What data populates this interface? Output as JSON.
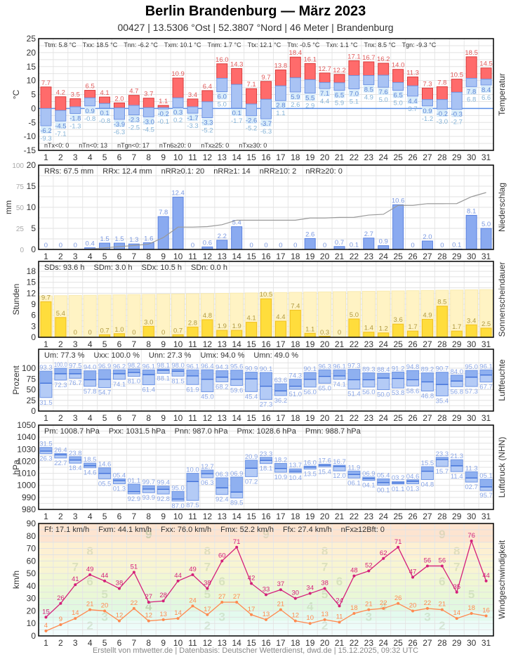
{
  "header": {
    "title": "Berlin Brandenburg  —  März 2023",
    "subtitle": "00427  |  13.5306 °Ost  |  52.3807 °Nord  |  46 Meter  |  Brandenburg"
  },
  "footer": "Erstellt von mtwetter.de | Datenbasis: Deutscher Wetterdienst, dwd.de | 15.12.2025, 09:32 UTC",
  "colors": {
    "temp_max": "#ff6b6b",
    "temp_min": "#a9c3f4",
    "zero_line": "#5b8fe8",
    "precip": "#8aaaf0",
    "precip_cumulative": "#999999",
    "sun": "#ffdd3c",
    "daylength": "#fff3c4",
    "humidity": "#a9c3f4",
    "pressure": "#a9c3f4",
    "wind_gust": "#d4207a",
    "wind_mean": "#ff8a50"
  },
  "chart_data": [
    {
      "type": "bar",
      "panel": "Temperatur",
      "ylabel": "°C",
      "ylim": [
        -15,
        25
      ],
      "yticks": [
        -15,
        -10,
        -5,
        0,
        5,
        10,
        15,
        20,
        25
      ],
      "categories": [
        1,
        2,
        3,
        4,
        5,
        6,
        7,
        8,
        9,
        10,
        11,
        12,
        13,
        14,
        15,
        16,
        17,
        18,
        19,
        20,
        21,
        22,
        23,
        24,
        25,
        26,
        27,
        28,
        29,
        30,
        31
      ],
      "stats_top": [
        "Ttm: 5.8 °C",
        "Txx: 18.5 °C",
        "Tnn: -6.2 °C",
        "Txm: 10.1 °C",
        "Tnm: 1.7 °C",
        "Ttx: 12.1 °C",
        "Ttn: -0.5 °C",
        "Txn: 1.1 °C",
        "Tnx: 8.5 °C",
        "Tgn: -9.3 °C"
      ],
      "stats_bottom": [
        "nTx<0: 0",
        "nTn<0: 13",
        "nTgn<0: 17",
        "nTn6≥20: 0",
        "nTx≥25: 0",
        "nTx≥30: 0"
      ],
      "tmax": [
        7.7,
        4.2,
        3.5,
        6.5,
        4.1,
        2.0,
        4.7,
        3.7,
        1.1,
        10.9,
        3.4,
        6.4,
        16.0,
        14.3,
        7.1,
        9.7,
        13.8,
        18.4,
        16.1,
        12.7,
        12.2,
        17.1,
        16.7,
        16.2,
        14.0,
        11.3,
        7.3,
        7.8,
        10.5,
        18.5,
        14.5
      ],
      "tmean": [
        0.0,
        -0.7,
        0.6,
        3.8,
        1.8,
        0.2,
        1.1,
        0.3,
        0.3,
        3.8,
        0.6,
        2.4,
        10.8,
        8.6,
        1.6,
        3.3,
        8.1,
        11.0,
        10.3,
        9.3,
        9.2,
        11.8,
        11.8,
        11.9,
        9.3,
        8.1,
        3.2,
        3.2,
        5.8,
        10.8,
        10.5
      ],
      "tmin": [
        -6.2,
        -4.5,
        -1.8,
        0.9,
        0.1,
        -3.9,
        -2.3,
        -3.0,
        -0.2,
        0.3,
        -1.7,
        -3.3,
        6.0,
        0.1,
        -2.6,
        -3.7,
        2.8,
        5.9,
        5.5,
        7.1,
        6.5,
        7.0,
        8.5,
        7.6,
        6.5,
        4.4,
        0.9,
        -0.2,
        -0.3,
        7.8,
        8.4
      ],
      "tground_min": [
        -9.3,
        -7.1,
        -1.3,
        -0.8,
        -0.8,
        -6.3,
        -2.5,
        -4.5,
        -0.1,
        0.2,
        -3.3,
        -5.2,
        5.0,
        -1.7,
        -5.2,
        -6.3,
        1.1,
        2.6,
        2.9,
        4.4,
        5.9,
        5.1,
        4.9,
        5.0,
        5.0,
        3.7,
        -1.2,
        -3.0,
        -2.7,
        6.8,
        6.6
      ]
    },
    {
      "type": "bar",
      "panel": "Niederschlag",
      "ylabel": "mm",
      "ylim": [
        0,
        20
      ],
      "yticks": [
        0,
        5,
        10,
        15,
        20
      ],
      "y2lim": [
        0,
        100
      ],
      "y2ticks": [
        0,
        25,
        50,
        75,
        100
      ],
      "stats_top": [
        "RRs: 67.5 mm",
        "RRx: 12.4 mm",
        "nRR≥0.1: 20",
        "nRR≥1: 14",
        "nRR≥10: 2",
        "nRR≥20: 0"
      ],
      "values": [
        0,
        0,
        0,
        0.4,
        1.5,
        1.5,
        1.3,
        1.6,
        7.8,
        12.4,
        0,
        0.6,
        2.2,
        5.4,
        0,
        0,
        0,
        0,
        2.6,
        0,
        0.7,
        0.1,
        2.7,
        0.9,
        10.6,
        0,
        2.0,
        0,
        0.1,
        8.1,
        5.0
      ],
      "labels": [
        "0",
        "0",
        "0",
        "0.4",
        "1.5",
        "1.5",
        "1.3",
        "1.6",
        "7.8",
        "12.4",
        "0",
        "0.6",
        "2.2",
        "5.4",
        "0",
        "0",
        "0",
        "0",
        "2.6",
        "0",
        "0.7",
        "0.1",
        "2.7",
        "0.9",
        "10.6",
        "0",
        "2.0",
        "0",
        "0.1",
        "8.1",
        "5.0"
      ]
    },
    {
      "type": "bar",
      "panel": "Sonnenscheindauer",
      "ylabel": "Stunden",
      "ylim": [
        0,
        20.7
      ],
      "yticks": [
        0,
        3,
        6,
        9,
        12,
        15,
        18
      ],
      "stats_top": [
        "SDs: 93.6 h",
        "SDm: 3.0 h",
        "SDx: 10.5 h",
        "SDn: 0.0 h"
      ],
      "values": [
        9.7,
        5.4,
        0,
        0,
        0.7,
        1.0,
        0,
        3.0,
        0,
        0.7,
        2.8,
        4.8,
        1.9,
        1.9,
        4.1,
        10.5,
        4.4,
        7.4,
        1.1,
        0.3,
        0,
        5.0,
        1.4,
        1.2,
        3.6,
        1.7,
        4.9,
        8.5,
        1.7,
        3.4,
        2.5
      ],
      "labels": [
        "9.7",
        "5.4",
        "0",
        "0",
        "0.7",
        "1.0",
        "0",
        "3.0",
        "0",
        "0.7",
        "2.8",
        "4.8",
        "1.9",
        "1.9",
        "4.1",
        "10.5",
        "4.4",
        "7.4",
        "1.1",
        "0.3",
        "0",
        "5.0",
        "1.4",
        "1.2",
        "3.6",
        "1.7",
        "4.9",
        "8.5",
        "1.7",
        "3.4",
        "2.5"
      ],
      "daylength_range": [
        11.3,
        13.0
      ]
    },
    {
      "type": "bar",
      "panel": "Luftfeuchte",
      "ylabel": "Prozent",
      "ylim": [
        0,
        123
      ],
      "yticks": [
        0,
        25,
        50,
        75,
        100
      ],
      "stats_top": [
        "Um: 77.3 %",
        "Uxx: 100.0 %",
        "Unn: 27.3 %",
        "Umx: 94.0 %",
        "Umn: 49.0 %"
      ],
      "max": [
        93.3,
        100.0,
        97.5,
        94.0,
        96.9,
        96.2,
        98.2,
        96.1,
        98.1,
        98.0,
        96.1,
        96.4,
        94.3,
        95.6,
        90.9,
        90.1,
        63.6,
        74.3,
        90.1,
        96.3,
        96.1,
        97.3,
        89.3,
        88.4,
        91.2,
        94.8,
        89.2,
        90.7,
        84.0,
        95.0,
        96.1
      ],
      "mean": [
        65,
        87,
        87,
        73,
        74,
        87,
        90,
        85,
        95,
        93,
        82,
        74,
        79,
        74,
        75,
        58,
        47,
        58,
        74,
        81,
        82,
        73,
        73,
        77,
        76,
        73,
        68,
        62,
        70,
        79,
        84
      ],
      "min": [
        31.5,
        72.3,
        76.7,
        57.8,
        54.7,
        74.1,
        81.0,
        61.4,
        88.1,
        81.5,
        61.9,
        45.0,
        68.2,
        59.6,
        45.4,
        27.3,
        36.2,
        51.0,
        56.0,
        65.0,
        74.1,
        51.4,
        56.0,
        50.0,
        53.8,
        58.6,
        46.8,
        35.4,
        56.8,
        57.3,
        67.7
      ]
    },
    {
      "type": "bar",
      "panel": "Luftdruck (NHN)",
      "ylabel": "hPa",
      "ylim": [
        980,
        1050
      ],
      "yticks": [
        980,
        990,
        1000,
        1010,
        1020,
        1030,
        1040,
        1050
      ],
      "stats_top": [
        "Pm: 1008.7 hPa",
        "Pxx: 1031.5 hPa",
        "Pnn: 987.0 hPa",
        "Pmx: 1028.6 hPa",
        "Pmn: 988.7 hPa"
      ],
      "max": [
        1031.5,
        1026.4,
        1023.8,
        1018.5,
        1014.6,
        1005.4,
        1001.1,
        999.7,
        999.4,
        995.0,
        1010.0,
        1012.7,
        1006.3,
        1006.9,
        1020.9,
        1023.3,
        1018.2,
        1013.7,
        1016.0,
        1017.6,
        1016.7,
        1011.9,
        1006.9,
        1005.4,
        1003.2,
        1004.6,
        1015.5,
        1023.3,
        1021.3,
        1011.3,
        1005.1
      ],
      "mean": [
        1028.4,
        1025.3,
        1021.0,
        1016.2,
        1009.9,
        1003.9,
        994.8,
        996.9,
        996.7,
        988.6,
        1003.1,
        1009.6,
        997.9,
        994.4,
        1014.2,
        1020.7,
        1014.0,
        1011.7,
        1015.0,
        1016.6,
        1015.6,
        1009.0,
        1005.5,
        1002.2,
        1002.0,
        1003.3,
        1011.7,
        1021.4,
        1016.2,
        1006.1,
        998.7
      ],
      "min": [
        1026.3,
        1022.7,
        1018.4,
        1014.6,
        1005.5,
        1001.3,
        992.9,
        993.9,
        992.8,
        987.0,
        987.5,
        1006.3,
        992.4,
        989.5,
        1007.2,
        1018.1,
        1010.9,
        1010.4,
        1013.5,
        1015.4,
        1012.0,
        1006.1,
        1004.1,
        1000.1,
        1001.1,
        1001.3,
        1004.8,
        1015.7,
        1011.4,
        1002.7,
        995.7
      ],
      "max_labels": [
        "31.5",
        "26.4",
        "23.8",
        "18.5",
        "14.6",
        "05.4",
        "01.1",
        "99.7",
        "99.4",
        "95.0",
        "10.0",
        "12.7",
        "06.3",
        "06.9",
        "20.9",
        "23.3",
        "18.2",
        "13.7",
        "16.0",
        "17.6",
        "16.7",
        "11.9",
        "06.9",
        "05.4",
        "03.2",
        "04.6",
        "15.5",
        "23.3",
        "21.3",
        "11.3",
        "05.1"
      ],
      "min_labels": [
        "26.3",
        "22.7",
        "18.4",
        "14.6",
        "05.5",
        "01.3",
        "92.9",
        "93.9",
        "92.8",
        "87.0",
        "87.5",
        "06.3",
        "92.4",
        "89.5",
        "07.2",
        "18.1",
        "10.9",
        "10.4",
        "13.5",
        "15.4",
        "12.0",
        "06.1",
        "04.1",
        "00.1",
        "01.1",
        "01.3",
        "04.8",
        "15.7",
        "11.4",
        "02.7",
        "95.7"
      ]
    },
    {
      "type": "line",
      "panel": "Windgeschwindigkeit",
      "ylabel": "km/h",
      "ylim": [
        0,
        90
      ],
      "yticks": [
        0,
        10,
        20,
        30,
        40,
        50,
        60,
        70,
        80,
        90
      ],
      "stats_top": [
        "Ff: 17.1 km/h",
        "Fxm: 44.1 km/h",
        "Fxx: 76.0 km/h",
        "Fmx: 52.2 km/h",
        "Ffx: 27.4 km/h",
        "nFx≥12Bft: 0"
      ],
      "beaufort_labels": [
        "2",
        "3",
        "4",
        "5",
        "6",
        "7",
        "8",
        "9"
      ],
      "series": [
        {
          "key": "gust",
          "values": [
            15,
            26,
            41,
            49,
            44,
            38,
            51,
            27,
            28,
            44,
            49,
            38,
            60,
            71,
            42,
            33,
            37,
            30,
            34,
            38,
            24,
            48,
            52,
            62,
            71,
            47,
            56,
            56,
            35,
            76,
            44
          ]
        },
        {
          "key": "mean",
          "values": [
            4,
            9,
            14,
            21,
            20,
            12,
            22,
            12,
            13,
            14,
            24,
            17,
            27,
            27,
            17,
            13,
            21,
            12,
            10,
            13,
            11,
            18,
            21,
            22,
            26,
            20,
            22,
            21,
            14,
            18,
            16
          ]
        }
      ]
    }
  ]
}
